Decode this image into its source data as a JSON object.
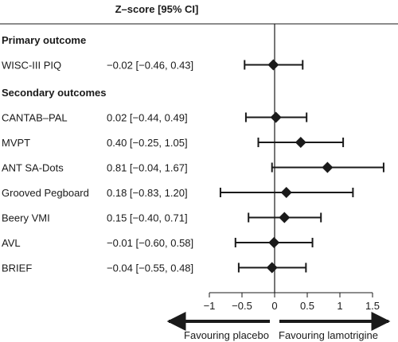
{
  "chart_data": {
    "type": "forest",
    "header": "Z–score [95% CI]",
    "groups": [
      {
        "title": "Primary outcome",
        "rows": [
          {
            "label": "WISC-III PIQ",
            "ci_text": "−0.02 [−0.46, 0.43]",
            "estimate": -0.02,
            "lower": -0.46,
            "upper": 0.43
          }
        ]
      },
      {
        "title": "Secondary outcomes",
        "rows": [
          {
            "label": "CANTAB–PAL",
            "ci_text": "0.02 [−0.44, 0.49]",
            "estimate": 0.02,
            "lower": -0.44,
            "upper": 0.49
          },
          {
            "label": "MVPT",
            "ci_text": "0.40 [−0.25, 1.05]",
            "estimate": 0.4,
            "lower": -0.25,
            "upper": 1.05
          },
          {
            "label": "ANT SA-Dots",
            "ci_text": "0.81 [−0.04, 1.67]",
            "estimate": 0.81,
            "lower": -0.04,
            "upper": 1.67
          },
          {
            "label": "Grooved Pegboard",
            "ci_text": "0.18 [−0.83, 1.20]",
            "estimate": 0.18,
            "lower": -0.83,
            "upper": 1.2
          },
          {
            "label": "Beery VMI",
            "ci_text": "0.15 [−0.40, 0.71]",
            "estimate": 0.15,
            "lower": -0.4,
            "upper": 0.71
          },
          {
            "label": "AVL",
            "ci_text": "−0.01 [−0.60, 0.58]",
            "estimate": -0.01,
            "lower": -0.6,
            "upper": 0.58
          },
          {
            "label": "BRIEF",
            "ci_text": "−0.04 [−0.55, 0.48]",
            "estimate": -0.04,
            "lower": -0.55,
            "upper": 0.48
          }
        ]
      }
    ],
    "xlim": [
      -1,
      1.5
    ],
    "x_ticks": [
      -1,
      -0.5,
      0,
      0.5,
      1,
      1.5
    ],
    "x_tick_labels": [
      "−1",
      "−0.5",
      "0",
      "0.5",
      "1",
      "1.5"
    ],
    "reference_line": 0,
    "direction_labels": {
      "left": "Favouring placebo",
      "right": "Favouring lamotrigine"
    },
    "colors": {
      "marker": "#1a1a1a",
      "line": "#1a1a1a"
    }
  }
}
